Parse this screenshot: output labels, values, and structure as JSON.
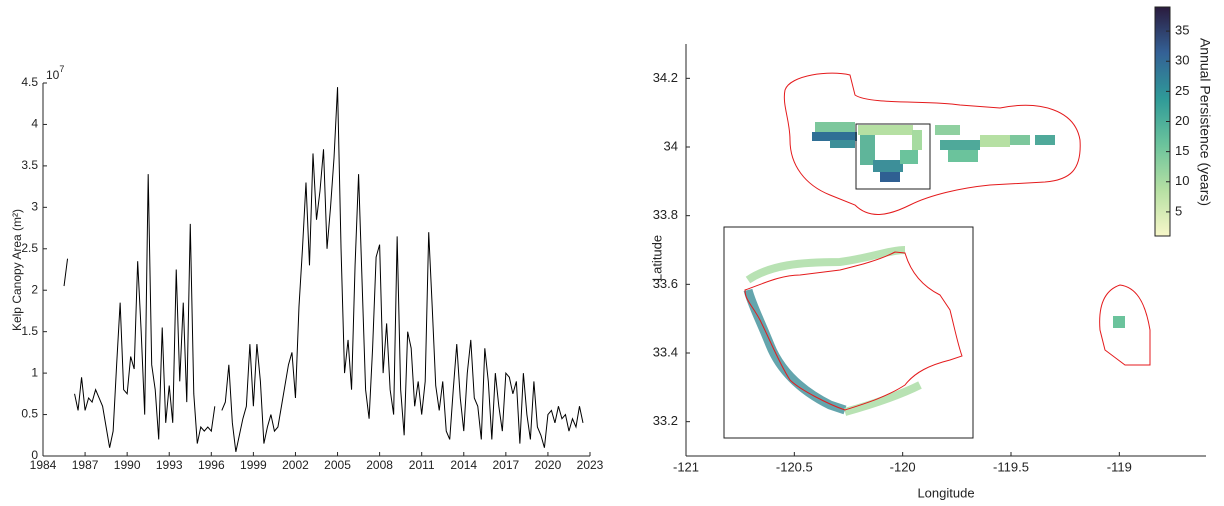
{
  "chart_data": [
    {
      "type": "line",
      "ylabel": "Kelp Canopy Area (m²)",
      "y_exponent_base": "10",
      "y_exponent": "7",
      "color": "#000000",
      "x": [
        1985.5,
        1985.75,
        1986,
        1986.25,
        1986.5,
        1986.75,
        1987,
        1987.25,
        1987.5,
        1987.75,
        1988,
        1988.25,
        1988.5,
        1988.75,
        1989,
        1989.25,
        1989.5,
        1989.75,
        1990,
        1990.25,
        1990.5,
        1990.75,
        1991,
        1991.25,
        1991.5,
        1991.75,
        1992,
        1992.25,
        1992.5,
        1992.75,
        1993,
        1993.25,
        1993.5,
        1993.75,
        1994,
        1994.25,
        1994.5,
        1994.75,
        1995,
        1995.25,
        1995.5,
        1995.75,
        1996,
        1996.25,
        1996.5,
        1996.75,
        1997,
        1997.25,
        1997.5,
        1997.75,
        1998,
        1998.25,
        1998.5,
        1998.75,
        1999,
        1999.25,
        1999.5,
        1999.75,
        2000,
        2000.25,
        2000.5,
        2000.75,
        2001,
        2001.25,
        2001.5,
        2001.75,
        2002,
        2002.25,
        2002.5,
        2002.75,
        2003,
        2003.25,
        2003.5,
        2003.75,
        2004,
        2004.25,
        2004.5,
        2004.75,
        2005,
        2005.25,
        2005.5,
        2005.75,
        2006,
        2006.25,
        2006.5,
        2006.75,
        2007,
        2007.25,
        2007.5,
        2007.75,
        2008,
        2008.25,
        2008.5,
        2008.75,
        2009,
        2009.25,
        2009.5,
        2009.75,
        2010,
        2010.25,
        2010.5,
        2010.75,
        2011,
        2011.25,
        2011.5,
        2011.75,
        2012,
        2012.25,
        2012.5,
        2012.75,
        2013,
        2013.25,
        2013.5,
        2013.75,
        2014,
        2014.25,
        2014.5,
        2014.75,
        2015,
        2015.25,
        2015.5,
        2015.75,
        2016,
        2016.25,
        2016.5,
        2016.75,
        2017,
        2017.25,
        2017.5,
        2017.75,
        2018,
        2018.25,
        2018.5,
        2018.75,
        2019,
        2019.25,
        2019.5,
        2019.75,
        2020,
        2020.25,
        2020.5,
        2020.75,
        2021,
        2021.25,
        2021.5,
        2021.75,
        2022,
        2022.25,
        2022.5
      ],
      "values": [
        2.05,
        2.38,
        null,
        0.75,
        0.55,
        0.95,
        0.55,
        0.7,
        0.65,
        0.8,
        0.7,
        0.6,
        0.35,
        0.1,
        0.3,
        1.1,
        1.85,
        0.8,
        0.75,
        1.2,
        1.05,
        2.35,
        1.5,
        0.5,
        3.4,
        1.1,
        0.8,
        0.2,
        1.55,
        0.4,
        0.85,
        0.4,
        2.25,
        0.9,
        1.85,
        0.65,
        2.8,
        0.75,
        0.15,
        0.35,
        0.3,
        0.35,
        0.3,
        0.6,
        null,
        0.55,
        0.65,
        1.1,
        0.4,
        0.05,
        0.25,
        0.45,
        0.6,
        1.35,
        0.6,
        1.35,
        0.9,
        0.15,
        0.35,
        0.5,
        0.3,
        0.35,
        0.6,
        0.85,
        1.1,
        1.25,
        0.7,
        1.8,
        2.5,
        3.3,
        2.3,
        3.65,
        2.85,
        3.2,
        3.7,
        2.5,
        3.0,
        3.6,
        4.45,
        2.5,
        1.0,
        1.4,
        0.8,
        2.3,
        3.4,
        2.1,
        0.8,
        0.45,
        1.3,
        2.4,
        2.55,
        1.0,
        1.6,
        0.8,
        0.5,
        2.65,
        0.8,
        0.25,
        1.5,
        1.3,
        0.6,
        0.9,
        0.5,
        0.9,
        2.7,
        1.8,
        0.85,
        0.55,
        0.9,
        0.3,
        0.2,
        0.8,
        1.35,
        0.7,
        0.3,
        1.0,
        1.4,
        0.7,
        0.6,
        0.2,
        1.3,
        0.9,
        0.2,
        1.0,
        0.6,
        0.3,
        1.0,
        0.95,
        0.75,
        0.9,
        0.15,
        1.0,
        0.5,
        0.2,
        0.9,
        0.35,
        0.25,
        0.1,
        0.5,
        0.55,
        0.4,
        0.6,
        0.45,
        0.5,
        0.3,
        0.45,
        0.35,
        0.6,
        0.4
      ],
      "xlim": [
        1984,
        2023
      ],
      "xticks": [
        1984,
        1987,
        1990,
        1993,
        1996,
        1999,
        2002,
        2005,
        2008,
        2011,
        2014,
        2017,
        2020,
        2023
      ],
      "ylim": [
        0,
        4.5
      ],
      "yticks": [
        0,
        0.5,
        1,
        1.5,
        2,
        2.5,
        3,
        3.5,
        4,
        4.5
      ]
    },
    {
      "type": "map",
      "xlabel": "Longitude",
      "ylabel": "Latitude",
      "xlim": [
        -121,
        -118.6
      ],
      "xticks": [
        -121,
        -120.5,
        -120,
        -119.5,
        -119
      ],
      "ylim": [
        33.1,
        34.3
      ],
      "yticks": [
        33.2,
        33.4,
        33.6,
        33.8,
        34,
        34.2
      ],
      "colorbar_label": "Annual Persistence (years)",
      "colorbar_lim": [
        1,
        39
      ],
      "colorbar_ticks": [
        5,
        10,
        15,
        20,
        25,
        30,
        35
      ]
    }
  ]
}
